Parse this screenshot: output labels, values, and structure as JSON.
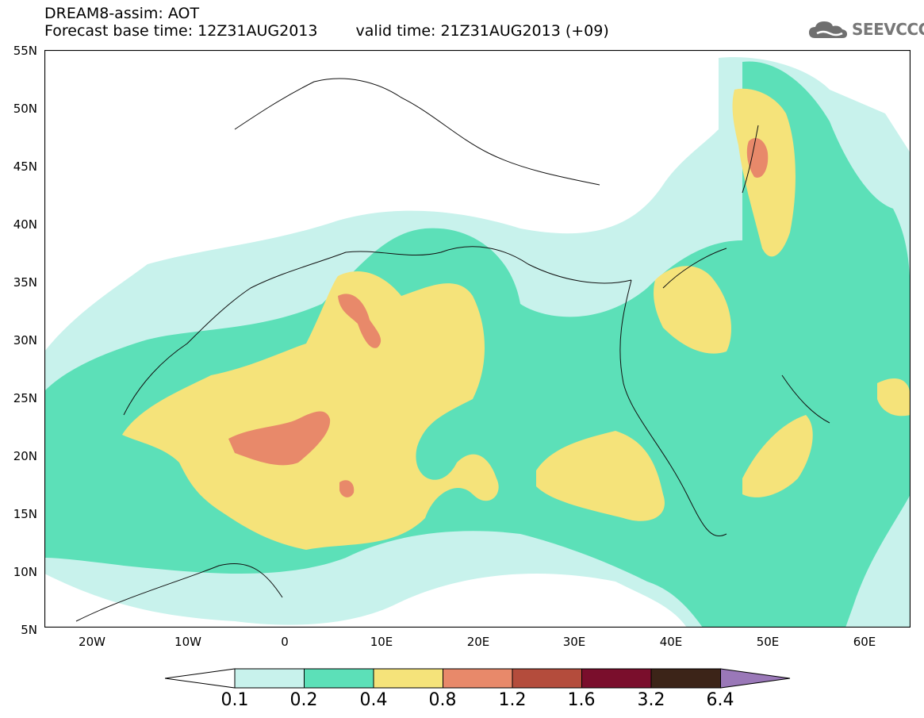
{
  "header": {
    "title": "DREAM8-assim: AOT",
    "base_time": "Forecast base time: 12Z31AUG2013",
    "valid_time": "valid time: 21Z31AUG2013 (+09)"
  },
  "logo": {
    "text": "SEEVCCC",
    "icon": "cloud-icon",
    "color": "#777777"
  },
  "map": {
    "lat_labels": [
      "55N",
      "50N",
      "45N",
      "40N",
      "35N",
      "30N",
      "25N",
      "20N",
      "15N",
      "10N",
      "5N"
    ],
    "lon_labels": [
      "20W",
      "10W",
      "0",
      "10E",
      "20E",
      "30E",
      "40E",
      "50E",
      "60E"
    ],
    "colors": {
      "c01": "#c8f2ec",
      "c02": "#5ce0b8",
      "c04": "#f5e37a",
      "c08": "#e8896a",
      "c12": "#b44c3c",
      "c16": "#7a0e2c",
      "c32": "#3c2418",
      "c64": "#9a78b8"
    }
  },
  "colorbar": {
    "labels": [
      "0.1",
      "0.2",
      "0.4",
      "0.8",
      "1.2",
      "1.6",
      "3.2",
      "6.4"
    ]
  }
}
